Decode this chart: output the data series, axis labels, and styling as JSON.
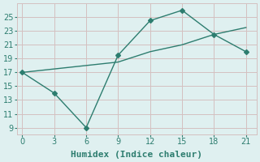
{
  "line1_x": [
    0,
    3,
    6,
    9,
    12,
    15,
    18,
    21
  ],
  "line1_y": [
    17,
    14,
    9,
    19.5,
    24.5,
    26,
    22.5,
    20
  ],
  "line2_x": [
    0,
    3,
    6,
    9,
    12,
    15,
    18,
    21
  ],
  "line2_y": [
    17,
    17.5,
    18,
    18.5,
    20,
    21,
    22.5,
    23.5
  ],
  "line_color": "#2d7d6f",
  "bg_color": "#dff0f0",
  "grid_color": "#d4c0c0",
  "xlabel": "Humidex (Indice chaleur)",
  "xlim": [
    -0.5,
    22
  ],
  "ylim": [
    8,
    27
  ],
  "xticks": [
    0,
    3,
    6,
    9,
    12,
    15,
    18,
    21
  ],
  "yticks": [
    9,
    11,
    13,
    15,
    17,
    19,
    21,
    23,
    25
  ],
  "marker": "D",
  "markersize": 3,
  "linewidth": 1.0,
  "xlabel_fontsize": 8,
  "tick_fontsize": 7
}
